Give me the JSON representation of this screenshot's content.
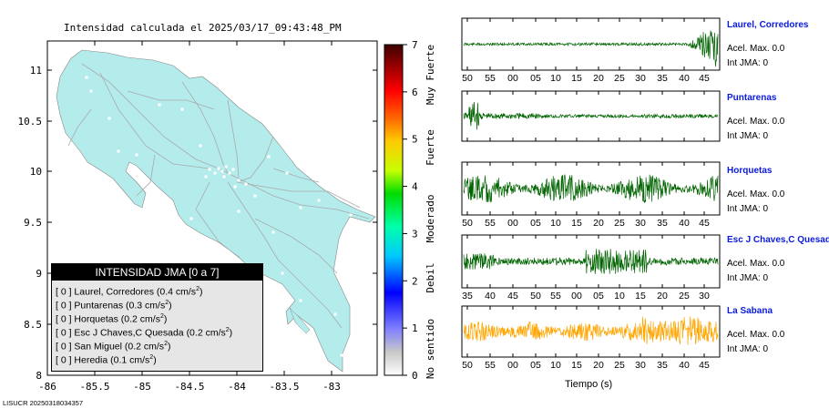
{
  "title": "Intensidad calculada el 2025/03/17_09:43:48_PM",
  "stamp": "LISUCR 20250318034357",
  "map": {
    "lon_ticks": [
      "-86",
      "-85.5",
      "-85",
      "-84.5",
      "-84",
      "-83.5",
      "-83"
    ],
    "lat_ticks": [
      "8",
      "8.5",
      "9",
      "9.5",
      "10",
      "10.5",
      "11"
    ],
    "land_color": "#b4ecec",
    "road_color": "#a9a9a9"
  },
  "colorbar": {
    "ticks": [
      "0",
      "1",
      "2",
      "3",
      "4",
      "5",
      "6",
      "7"
    ],
    "categories": [
      "No sentido",
      "Debil",
      "Moderado",
      "Fuerte",
      "Muy Fuerte"
    ]
  },
  "legend": {
    "title": "INTENSIDAD JMA [0 a 7]",
    "rows": [
      {
        "text": "[ 0 ]  Laurel, Corredores (0.4 cm/s",
        "sup": "2",
        "close": ")"
      },
      {
        "text": "[ 0 ]  Puntarenas (0.3 cm/s",
        "sup": "2",
        "close": ")"
      },
      {
        "text": "[ 0 ]  Horquetas (0.2 cm/s",
        "sup": "2",
        "close": ")"
      },
      {
        "text": "[ 0 ]  Esc J Chaves,C Quesada (0.2 cm/s",
        "sup": "2",
        "close": ")"
      },
      {
        "text": "[ 0 ]  San Miguel (0.2 cm/s",
        "sup": "2",
        "close": ")"
      },
      {
        "text": "[ 0 ]  Heredia (0.1 cm/s",
        "sup": "2",
        "close": ")"
      }
    ]
  },
  "stations": [
    {
      "name": "Laurel, Corredores",
      "acel": "Acel. Max. 0.0",
      "int": "Int JMA: 0",
      "color": "#006400",
      "ticks": [
        "50",
        "55",
        "00",
        "05",
        "10",
        "15",
        "20",
        "25",
        "30",
        "35",
        "40",
        "45"
      ]
    },
    {
      "name": "Puntarenas",
      "acel": "Acel. Max. 0.0",
      "int": "Int JMA: 0",
      "color": "#006400",
      "ticks": []
    },
    {
      "name": "Horquetas",
      "acel": "Acel. Max. 0.0",
      "int": "Int JMA: 0",
      "color": "#006400",
      "ticks": [
        "50",
        "55",
        "00",
        "05",
        "10",
        "15",
        "20",
        "25",
        "30",
        "35",
        "40",
        "45"
      ]
    },
    {
      "name": "Esc J Chaves,C Quesada",
      "acel": "Acel. Max. 0.0",
      "int": "Int JMA: 0",
      "color": "#006400",
      "ticks": [
        "35",
        "40",
        "45",
        "50",
        "55",
        "00",
        "05",
        "10",
        "15",
        "20",
        "25",
        "30"
      ]
    },
    {
      "name": "La Sabana",
      "acel": "Acel. Max. 0.0",
      "int": "Int JMA: 0",
      "color": "#ffa500",
      "ticks": [
        "50",
        "55",
        "00",
        "05",
        "10",
        "15",
        "20",
        "25",
        "30",
        "35",
        "40",
        "45"
      ]
    }
  ],
  "time_axis_label": "Tiempo (s)"
}
